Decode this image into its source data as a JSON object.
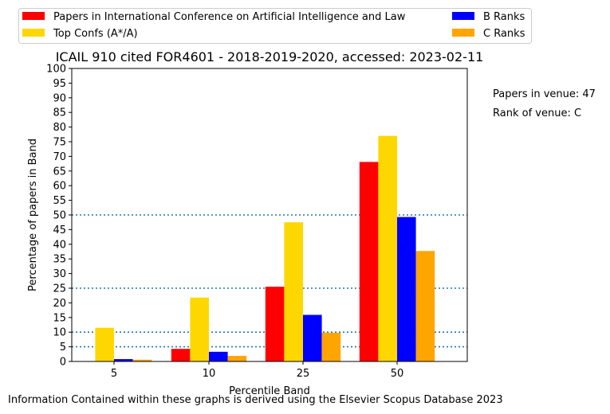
{
  "chart_data": {
    "type": "bar",
    "title": "ICAIL 910 cited FOR4601 - 2018-2019-2020, accessed: 2023-02-11",
    "xlabel": "Percentile Band",
    "ylabel": "Percentage of papers in Band",
    "categories": [
      "5",
      "10",
      "25",
      "50"
    ],
    "ylim": [
      0,
      100
    ],
    "yticks": [
      0,
      5,
      10,
      15,
      20,
      25,
      30,
      35,
      40,
      45,
      50,
      55,
      60,
      65,
      70,
      75,
      80,
      85,
      90,
      95,
      100
    ],
    "reference_lines": [
      5,
      10,
      25,
      50
    ],
    "legend_position": "top",
    "series": [
      {
        "name": "Papers in International Conference on Artificial Intelligence and Law",
        "color": "#ff0000",
        "values": [
          0,
          4.3,
          25.5,
          68.1
        ]
      },
      {
        "name": "Top Confs (A*/A)",
        "color": "#ffd700",
        "values": [
          11.5,
          21.8,
          47.5,
          77.0
        ]
      },
      {
        "name": "B Ranks",
        "color": "#0000ff",
        "values": [
          0.8,
          3.3,
          15.9,
          49.3
        ]
      },
      {
        "name": "C Ranks",
        "color": "#ffa500",
        "values": [
          0.6,
          1.9,
          9.8,
          37.7
        ]
      }
    ]
  },
  "side_notes": {
    "papers_in_venue": "Papers in venue: 47",
    "rank_of_venue": "Rank of venue: C"
  },
  "footer": "Information Contained within these graphs is derived using the Elsevier Scopus Database 2023",
  "colors": {
    "reference_line": "#1f77b4",
    "axis": "#000000"
  }
}
